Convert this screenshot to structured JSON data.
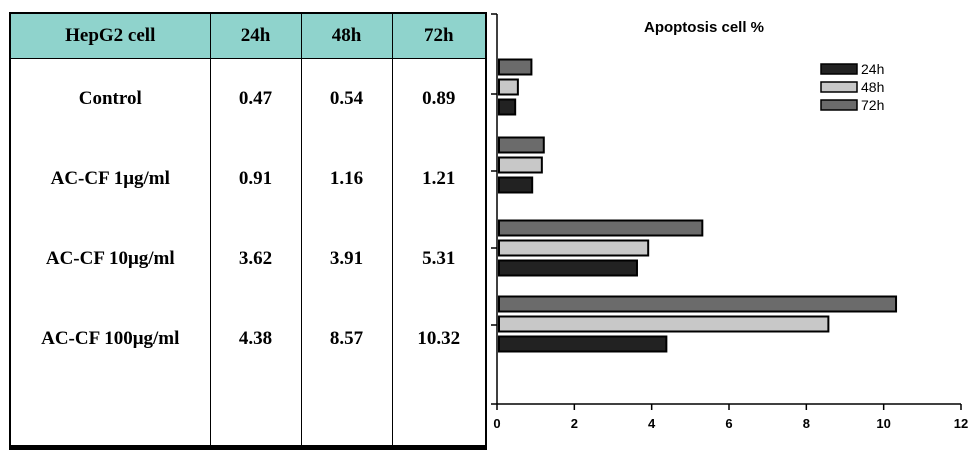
{
  "table": {
    "headers": [
      "HepG2 cell",
      "24h",
      "48h",
      "72h"
    ],
    "rows": [
      {
        "label": "Control",
        "v24": "0.47",
        "v48": "0.54",
        "v72": "0.89"
      },
      {
        "label": "AC-CF  1μg/ml",
        "v24": "0.91",
        "v48": "1.16",
        "v72": "1.21"
      },
      {
        "label": "AC-CF 10μg/ml",
        "v24": "3.62",
        "v48": "3.91",
        "v72": "5.31"
      },
      {
        "label": "AC-CF  100μg/ml",
        "v24": "4.38",
        "v48": "8.57",
        "v72": "10.32"
      }
    ]
  },
  "chart_data": {
    "type": "bar",
    "orientation": "horizontal",
    "title": "Apoptosis cell %",
    "categories": [
      "Control",
      "AC-CF 1μg/ml",
      "AC-CF 10μg/ml",
      "AC-CF 100μg/ml"
    ],
    "series": [
      {
        "name": "24h",
        "values": [
          0.47,
          0.91,
          3.62,
          4.38
        ],
        "color": "#222222"
      },
      {
        "name": "48h",
        "values": [
          0.54,
          1.16,
          3.91,
          8.57
        ],
        "color": "#c8c8c8"
      },
      {
        "name": "72h",
        "values": [
          0.89,
          1.21,
          5.31,
          10.32
        ],
        "color": "#6b6b6b"
      }
    ],
    "xlim": [
      0,
      12
    ],
    "xticks": [
      "0",
      "2",
      "4",
      "6",
      "8",
      "10",
      "12"
    ],
    "legend_position": "top-right",
    "grid": false
  }
}
